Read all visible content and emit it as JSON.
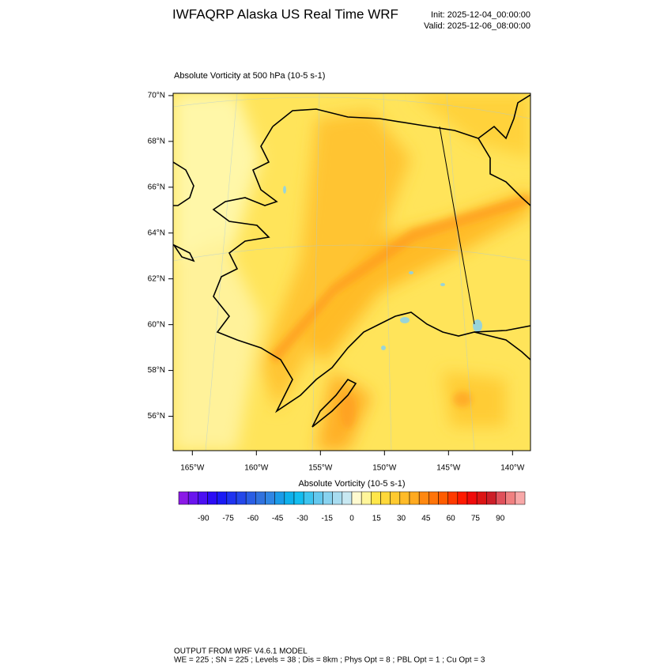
{
  "header": {
    "title": "IWFAQRP Alaska US Real Time WRF",
    "init": "Init: 2025-12-04_00:00:00",
    "valid": "Valid: 2025-12-06_08:00:00"
  },
  "map": {
    "subtitle": "Absolute Vorticity at 500 hPa   (10-5 s-1)",
    "ylim": [
      54.5,
      70.1
    ],
    "xlim": [
      -166.5,
      -138.6
    ],
    "yticks": [
      {
        "value": 70,
        "label": "70°N"
      },
      {
        "value": 68,
        "label": "68°N"
      },
      {
        "value": 66,
        "label": "66°N"
      },
      {
        "value": 64,
        "label": "64°N"
      },
      {
        "value": 62,
        "label": "62°N"
      },
      {
        "value": 60,
        "label": "60°N"
      },
      {
        "value": 58,
        "label": "58°N"
      },
      {
        "value": 56,
        "label": "56°N"
      }
    ],
    "xticks": [
      {
        "value": -165,
        "label": "165°W"
      },
      {
        "value": -160,
        "label": "160°W"
      },
      {
        "value": -155,
        "label": "155°W"
      },
      {
        "value": -150,
        "label": "150°W"
      },
      {
        "value": -145,
        "label": "145°W"
      },
      {
        "value": -140,
        "label": "140°W"
      }
    ]
  },
  "colorbar": {
    "title": "Absolute Vorticity  (10-5 s-1)",
    "lim": [
      -105,
      105
    ],
    "ticks": [
      -90,
      -75,
      -60,
      -45,
      -30,
      -15,
      0,
      15,
      30,
      45,
      60,
      75,
      90
    ],
    "colors": [
      "#8b1ae6",
      "#6a14ee",
      "#4b0ff2",
      "#2b0cf5",
      "#1a1af5",
      "#1f33f0",
      "#2448ea",
      "#2a5ee4",
      "#3072de",
      "#2f86e4",
      "#1a9be8",
      "#0db0ec",
      "#12bdf0",
      "#3cc4ef",
      "#64c8ee",
      "#88d2ef",
      "#a8dcf0",
      "#c8e8f2",
      "#fffad0",
      "#fff59a",
      "#ffe64a",
      "#ffd83a",
      "#ffca30",
      "#ffbb28",
      "#ffaa20",
      "#ff8810",
      "#ff7408",
      "#ff5c00",
      "#ff3a00",
      "#ff1a00",
      "#f00a0a",
      "#dc1414",
      "#cc1e28",
      "#e0505a",
      "#f08080",
      "#f8a8a8"
    ]
  },
  "footer": {
    "line1": "OUTPUT FROM WRF V4.6.1 MODEL",
    "line2": "WE = 225 ; SN = 225 ; Levels = 38 ; Dis = 8km ; Phys Opt = 8 ; PBL Opt = 1 ; Cu Opt = 3"
  }
}
